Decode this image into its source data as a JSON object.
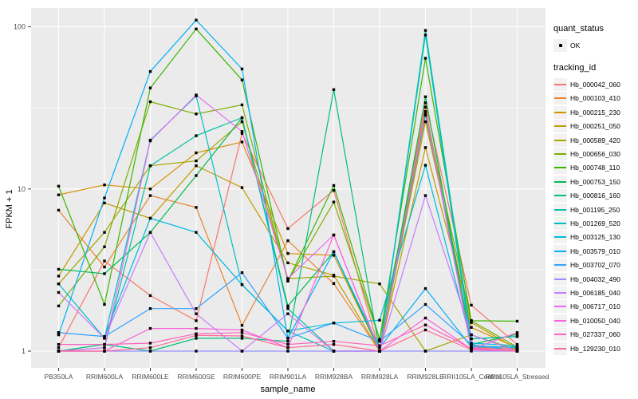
{
  "chart_data": {
    "type": "line",
    "title": "",
    "xlabel": "sample_name",
    "ylabel": "FPKM + 1",
    "y_scale": "log10",
    "y_ticks": [
      1,
      10,
      100
    ],
    "y_minor_ticks": [
      3.1623,
      31.623
    ],
    "ylim": [
      1,
      130
    ],
    "grid": "on",
    "legend_position": "right",
    "panel_bg": "#EBEBEB",
    "grid_color": "#FFFFFF",
    "point_color": "#000000",
    "tick_label_color": "#4D4D4D",
    "categories": [
      "PB350LA",
      "RRIM600LA",
      "RRIM600LE",
      "RRIM600SE",
      "RRIM600PE",
      "RRIM901LA",
      "RRIM928BA",
      "RRIM928LA",
      "RRIM928LE",
      "RRII105LA_Control",
      "RRII105LA_Stressed"
    ],
    "legend": {
      "quant_title": "quant_status",
      "quant_label": "OK",
      "series_title": "tracking_id"
    },
    "series": [
      {
        "name": "Hb_000042_060",
        "color": "#F8766D",
        "values": [
          1.05,
          3.6,
          2.2,
          1.54,
          22,
          5.7,
          9.8,
          1.0,
          34,
          1.92,
          1.1
        ]
      },
      {
        "name": "Hb_000103_410",
        "color": "#EA8331",
        "values": [
          7.4,
          3.3,
          9.1,
          7.7,
          1.44,
          4.8,
          2.61,
          1.0,
          32,
          1.05,
          1.04
        ]
      },
      {
        "name": "Hb_000215_230",
        "color": "#D89000",
        "values": [
          9.2,
          10.6,
          10.0,
          16.7,
          19.5,
          4.0,
          3.9,
          1.0,
          26,
          1.4,
          1.05
        ]
      },
      {
        "name": "Hb_000251_050",
        "color": "#C09B00",
        "values": [
          2.9,
          8.2,
          6.6,
          13.9,
          10.2,
          3.5,
          2.94,
          1.0,
          18,
          1.5,
          1.03
        ]
      },
      {
        "name": "Hb_000589_420",
        "color": "#A3A500",
        "values": [
          2.6,
          5.4,
          13.9,
          14.9,
          26,
          2.8,
          2.9,
          2.6,
          1.0,
          1.26,
          1.02
        ]
      },
      {
        "name": "Hb_000656_030",
        "color": "#7CAE00",
        "values": [
          1.9,
          4.4,
          34.5,
          29,
          33,
          2.7,
          8.3,
          1.18,
          29,
          1.54,
          1.06
        ]
      },
      {
        "name": "Hb_000748_110",
        "color": "#39B600",
        "values": [
          10.4,
          1.94,
          42,
          97,
          47,
          2.7,
          10.5,
          1.18,
          64,
          1.54,
          1.53
        ]
      },
      {
        "name": "Hb_000753_150",
        "color": "#00BB4E",
        "values": [
          3.2,
          3.0,
          5.4,
          12.1,
          27.5,
          1.9,
          4.1,
          1.0,
          37,
          1.1,
          1.27
        ]
      },
      {
        "name": "Hb_000816_160",
        "color": "#00BF7D",
        "values": [
          1.0,
          1.1,
          1.0,
          1.2,
          1.2,
          1.15,
          41,
          1.0,
          28.5,
          1.19,
          1.23
        ]
      },
      {
        "name": "Hb_001195_250",
        "color": "#00C1A3",
        "values": [
          1.0,
          1.05,
          13.9,
          21.3,
          27.5,
          1.83,
          1.0,
          1.0,
          95,
          1.19,
          1.23
        ]
      },
      {
        "name": "Hb_001269_520",
        "color": "#00BFC4",
        "values": [
          2.6,
          1.2,
          20,
          37.5,
          2.57,
          1.33,
          1.0,
          1.0,
          89,
          1.08,
          1.05
        ]
      },
      {
        "name": "Hb_003125_130",
        "color": "#00BBDA",
        "values": [
          1.3,
          1.23,
          6.6,
          5.4,
          2.57,
          1.33,
          1.49,
          1.55,
          14,
          1.12,
          1.08
        ]
      },
      {
        "name": "Hb_003579_010",
        "color": "#00B0F6",
        "values": [
          1.26,
          8.8,
          53,
          110,
          55,
          1.2,
          4.1,
          1.05,
          2.43,
          1.06,
          1.06
        ]
      },
      {
        "name": "Hb_003702_070",
        "color": "#35A2FF",
        "values": [
          1.3,
          1.23,
          1.83,
          1.83,
          3.05,
          1.2,
          1.49,
          1.15,
          1.94,
          1.1,
          1.0
        ]
      },
      {
        "name": "Hb_004032_490",
        "color": "#9590FF",
        "values": [
          1.0,
          1.0,
          1.0,
          1.0,
          1.0,
          1.0,
          1.0,
          1.0,
          1.0,
          1.0,
          1.0
        ]
      },
      {
        "name": "Hb_006185_040",
        "color": "#C77CFF",
        "values": [
          2.3,
          1.2,
          5.4,
          1.7,
          1.0,
          1.7,
          1.0,
          1.0,
          9.1,
          1.26,
          1.0
        ]
      },
      {
        "name": "Hb_006717_010",
        "color": "#E76BF3",
        "values": [
          1.0,
          1.05,
          19.8,
          38,
          22.6,
          2.8,
          5.2,
          1.0,
          30,
          1.03,
          1.0
        ]
      },
      {
        "name": "Hb_010050_040",
        "color": "#FA62DB",
        "values": [
          1.0,
          1.0,
          1.38,
          1.38,
          1.35,
          1.05,
          5.2,
          1.0,
          1.6,
          1.03,
          1.3
        ]
      },
      {
        "name": "Hb_027337_060",
        "color": "#FF62BC",
        "values": [
          1.1,
          1.1,
          1.12,
          1.28,
          1.3,
          1.1,
          1.15,
          1.08,
          1.45,
          1.04,
          1.02
        ]
      },
      {
        "name": "Hb_129230_010",
        "color": "#FF6A98",
        "values": [
          1.0,
          1.0,
          1.05,
          1.25,
          1.24,
          1.05,
          1.1,
          1.0,
          1.35,
          1.02,
          1.0
        ]
      }
    ]
  }
}
